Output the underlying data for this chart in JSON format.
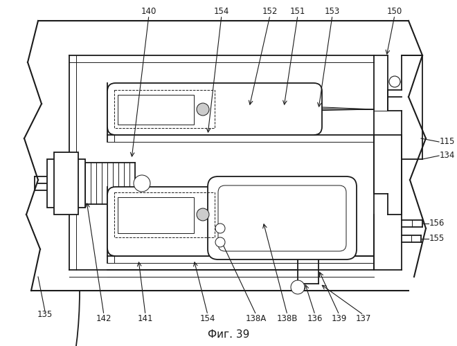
{
  "fig_label": "Фиг. 39",
  "bg_color": "#ffffff",
  "line_color": "#1a1a1a",
  "lw_main": 1.3,
  "lw_thin": 0.7,
  "label_fs": 8.5,
  "title_fs": 11
}
